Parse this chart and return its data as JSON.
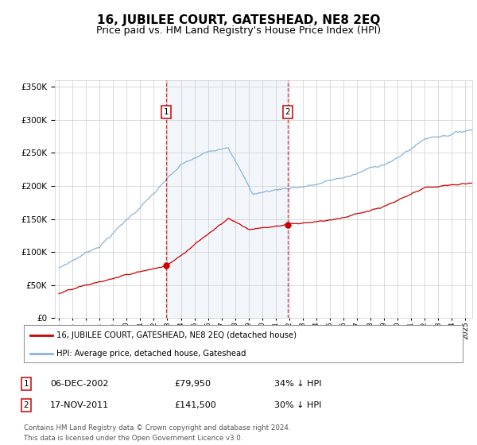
{
  "title": "16, JUBILEE COURT, GATESHEAD, NE8 2EQ",
  "subtitle": "Price paid vs. HM Land Registry's House Price Index (HPI)",
  "title_fontsize": 11,
  "subtitle_fontsize": 9,
  "background_color": "#ffffff",
  "plot_bg_color": "#ffffff",
  "grid_color": "#cccccc",
  "hpi_color": "#8ab4d8",
  "price_color": "#cc0000",
  "sale1_date": 2002.92,
  "sale1_price": 79950,
  "sale2_date": 2011.88,
  "sale2_price": 141500,
  "shade_color": "#dce8f5",
  "legend_entries": [
    "16, JUBILEE COURT, GATESHEAD, NE8 2EQ (detached house)",
    "HPI: Average price, detached house, Gateshead"
  ],
  "table_row1": [
    "1",
    "06-DEC-2002",
    "£79,950",
    "34% ↓ HPI"
  ],
  "table_row2": [
    "2",
    "17-NOV-2011",
    "£141,500",
    "30% ↓ HPI"
  ],
  "footer": "Contains HM Land Registry data © Crown copyright and database right 2024.\nThis data is licensed under the Open Government Licence v3.0.",
  "ylim": [
    0,
    360000
  ],
  "xlim_start": 1994.7,
  "xlim_end": 2025.5
}
